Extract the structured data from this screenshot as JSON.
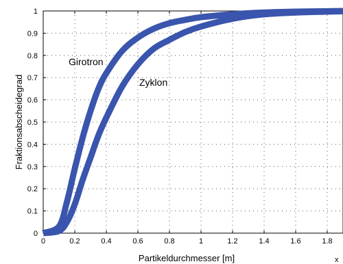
{
  "chart_data": {
    "type": "line",
    "xlabel": "Partikeldurchmesser [m]",
    "ylabel": "Fraktionsabscheidegrad",
    "x_exponent_label": "x",
    "xlim": [
      0,
      1.9
    ],
    "ylim": [
      0,
      1
    ],
    "xticks": [
      "0",
      "0.2",
      "0.4",
      "0.6",
      "0.8",
      "1",
      "1.2",
      "1.4",
      "1.6",
      "1.8"
    ],
    "yticks": [
      "0",
      "0.1",
      "0.2",
      "0.3",
      "0.4",
      "0.5",
      "0.6",
      "0.7",
      "0.8",
      "0.9",
      "1"
    ],
    "grid": true,
    "line_color": "#3a55ad",
    "series": [
      {
        "name": "Girotron",
        "x": [
          0,
          0.1,
          0.15,
          0.2,
          0.25,
          0.3,
          0.35,
          0.4,
          0.5,
          0.6,
          0.7,
          0.8,
          0.9,
          1.0,
          1.2,
          1.4,
          1.6,
          1.8,
          1.9
        ],
        "y": [
          0,
          0.03,
          0.14,
          0.29,
          0.43,
          0.55,
          0.65,
          0.72,
          0.82,
          0.88,
          0.92,
          0.945,
          0.96,
          0.972,
          0.985,
          0.993,
          0.997,
          0.999,
          1.0
        ]
      },
      {
        "name": "Zyklon",
        "x": [
          0,
          0.1,
          0.15,
          0.2,
          0.25,
          0.3,
          0.35,
          0.4,
          0.5,
          0.6,
          0.7,
          0.8,
          0.9,
          1.0,
          1.2,
          1.4,
          1.6,
          1.8,
          1.9
        ],
        "y": [
          0,
          0.01,
          0.05,
          0.13,
          0.24,
          0.34,
          0.44,
          0.52,
          0.66,
          0.76,
          0.83,
          0.87,
          0.905,
          0.93,
          0.965,
          0.985,
          0.993,
          0.997,
          0.999
        ]
      }
    ]
  }
}
